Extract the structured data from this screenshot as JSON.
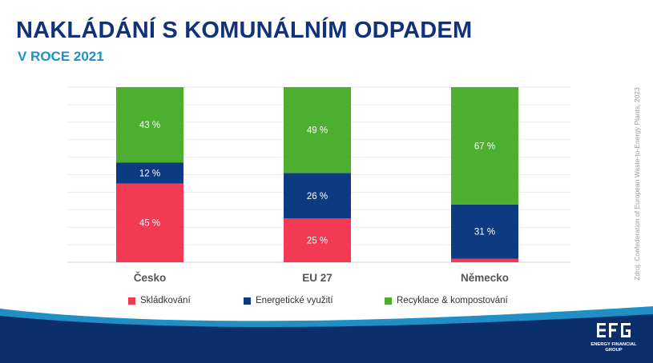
{
  "header": {
    "title": "NAKLÁDÁNÍ S KOMUNÁLNÍM ODPADEM",
    "subtitle": "V ROCE 2021"
  },
  "source_note": "Zdroj: Confederation of European Waste-to-Energy Plants, 2023",
  "logo": {
    "mark": "EFG",
    "line1": "ENERGY FINANCIAL",
    "line2": "GROUP"
  },
  "colors": {
    "title": "#10327a",
    "subtitle": "#1f8fc6",
    "landfill": "#f23a55",
    "energy": "#0d3b82",
    "recycling": "#4caf2f",
    "footer_dark": "#0b2f6b",
    "footer_light": "#1f8fc6"
  },
  "chart_data": {
    "type": "bar",
    "stacked": true,
    "categories": [
      "Česko",
      "EU 27",
      "Německo"
    ],
    "series": [
      {
        "name": "Skládkování",
        "color": "#f23a55",
        "values": [
          45,
          25,
          2
        ],
        "labels": [
          "45 %",
          "25 %",
          ""
        ]
      },
      {
        "name": "Energetické využití",
        "color": "#0d3b82",
        "values": [
          12,
          26,
          31
        ],
        "labels": [
          "12 %",
          "26 %",
          "31 %"
        ]
      },
      {
        "name": "Recyklace & kompostování",
        "color": "#4caf2f",
        "values": [
          43,
          49,
          67
        ],
        "labels": [
          "43 %",
          "49 %",
          "67 %"
        ]
      }
    ],
    "ylim": [
      0,
      100
    ],
    "grid": true,
    "legend": "bottom"
  }
}
